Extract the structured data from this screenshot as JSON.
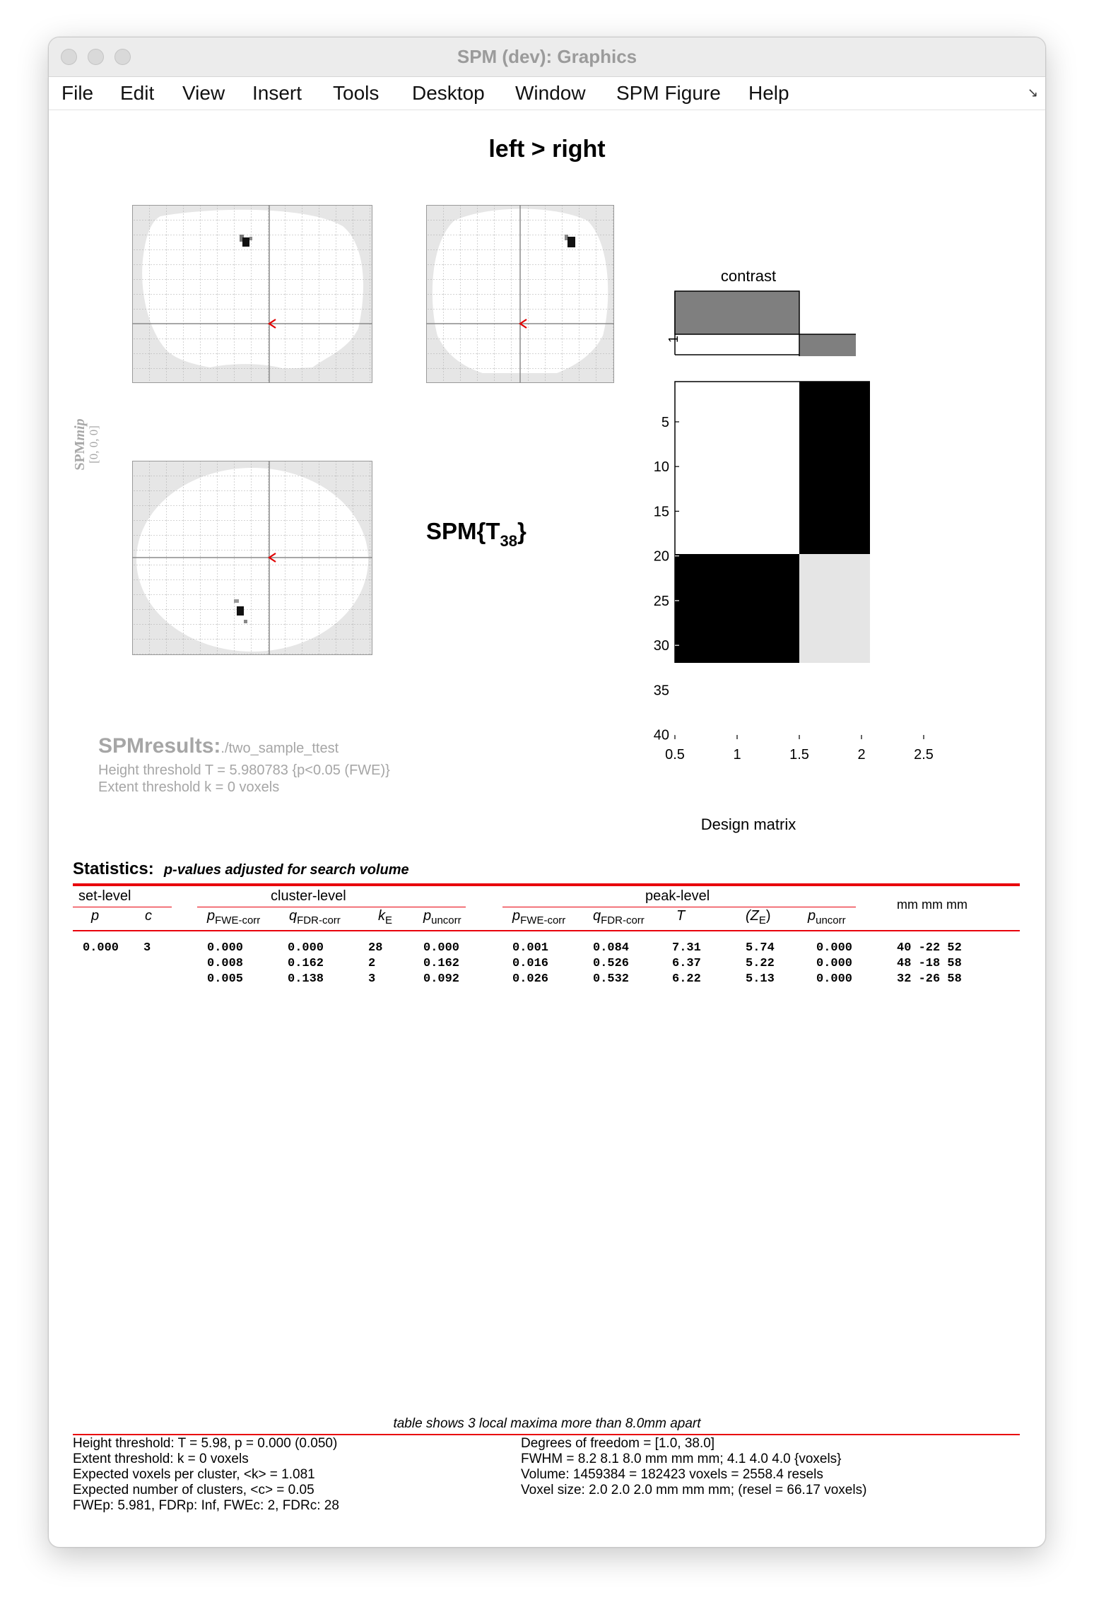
{
  "window": {
    "title": "SPM (dev): Graphics",
    "menu": [
      "File",
      "Edit",
      "View",
      "Insert",
      "Tools",
      "Desktop",
      "Window",
      "SPM Figure",
      "Help"
    ]
  },
  "figure": {
    "contrast_title": "left > right",
    "mip_label_main": "SPM",
    "mip_label_sub": "mip",
    "mip_coords": "[0, 0, 0]",
    "stat_label": "SPM{T",
    "stat_df": "38",
    "stat_close": "}",
    "results_title": "SPMresults:",
    "results_path": "./two_sample_ttest",
    "height_threshold": "Height threshold T = 5.980783  {p<0.05 (FWE)}",
    "extent_threshold": "Extent threshold k = 0 voxels",
    "contrast_panel_title": "contrast",
    "contrast_ytick": "1",
    "design_matrix_label": "Design matrix"
  },
  "chart_data": {
    "type": "heatmap",
    "title": "contrast",
    "xlabel": "Design matrix",
    "contrast_weights": [
      1,
      -1
    ],
    "x_ticks": [
      "0.5",
      "1",
      "1.5",
      "2",
      "2.5"
    ],
    "y_ticks": [
      "5",
      "10",
      "15",
      "20",
      "25",
      "30",
      "35",
      "40"
    ],
    "xlim": [
      0.5,
      2.5
    ],
    "ylim": [
      0.5,
      40.5
    ],
    "n_rows": 40,
    "columns": [
      {
        "column": 1,
        "rows_1_to_19": "white",
        "rows_20_to_40": "black"
      },
      {
        "column": 2,
        "rows_1_to_19": "black",
        "rows_20_to_40": "light-gray"
      }
    ]
  },
  "stats": {
    "heading": "Statistics:",
    "subheading": "p-values adjusted for search volume",
    "groups": {
      "set": "set-level",
      "cluster": "cluster-level",
      "peak": "peak-level",
      "coords": "mm mm mm"
    },
    "cols": {
      "set_p": "p",
      "set_c": "c",
      "cl_pfwe": "p",
      "cl_pfwe_sub": "FWE-corr",
      "cl_qfdr": "q",
      "cl_qfdr_sub": "FDR-corr",
      "cl_ke": "k",
      "cl_ke_sub": "E",
      "cl_punc": "p",
      "cl_punc_sub": "uncorr",
      "pk_pfwe": "p",
      "pk_pfwe_sub": "FWE-corr",
      "pk_qfdr": "q",
      "pk_qfdr_sub": "FDR-corr",
      "pk_t": "T",
      "pk_ze_open": "(Z",
      "pk_ze_sub": "E",
      "pk_ze_close": ")",
      "pk_punc": "p",
      "pk_punc_sub": "uncorr"
    },
    "rows": [
      {
        "set_p": "0.000",
        "set_c": "3",
        "cl_pfwe": "0.000",
        "cl_qfdr": "0.000",
        "cl_ke": "28",
        "cl_punc": "0.000",
        "pk_pfwe": "0.001",
        "pk_qfdr": "0.084",
        "pk_t": "7.31",
        "pk_ze": "5.74",
        "pk_punc": "0.000",
        "xyz": "40 -22 52"
      },
      {
        "set_p": "",
        "set_c": "",
        "cl_pfwe": "0.008",
        "cl_qfdr": "0.162",
        "cl_ke": "2",
        "cl_punc": "0.162",
        "pk_pfwe": "0.016",
        "pk_qfdr": "0.526",
        "pk_t": "6.37",
        "pk_ze": "5.22",
        "pk_punc": "0.000",
        "xyz": "48 -18 58"
      },
      {
        "set_p": "",
        "set_c": "",
        "cl_pfwe": "0.005",
        "cl_qfdr": "0.138",
        "cl_ke": "3",
        "cl_punc": "0.092",
        "pk_pfwe": "0.026",
        "pk_qfdr": "0.532",
        "pk_t": "6.22",
        "pk_ze": "5.13",
        "pk_punc": "0.000",
        "xyz": "32 -26 58"
      }
    ]
  },
  "footer": {
    "note": "table shows 3 local maxima more than 8.0mm apart",
    "left": [
      "Height threshold: T = 5.98, p = 0.000 (0.050)",
      "Extent threshold: k = 0 voxels",
      "Expected voxels per cluster, <k> = 1.081",
      "Expected number of clusters, <c> = 0.05",
      "FWEp: 5.981, FDRp: Inf, FWEc: 2, FDRc: 28"
    ],
    "right": [
      "Degrees of freedom = [1.0, 38.0]",
      "FWHM = 8.2 8.1 8.0 mm mm mm; 4.1 4.0 4.0 {voxels}",
      "Volume: 1459384 = 182423 voxels = 2558.4 resels",
      "Voxel size: 2.0 2.0 2.0 mm mm mm; (resel = 66.17 voxels)"
    ]
  }
}
